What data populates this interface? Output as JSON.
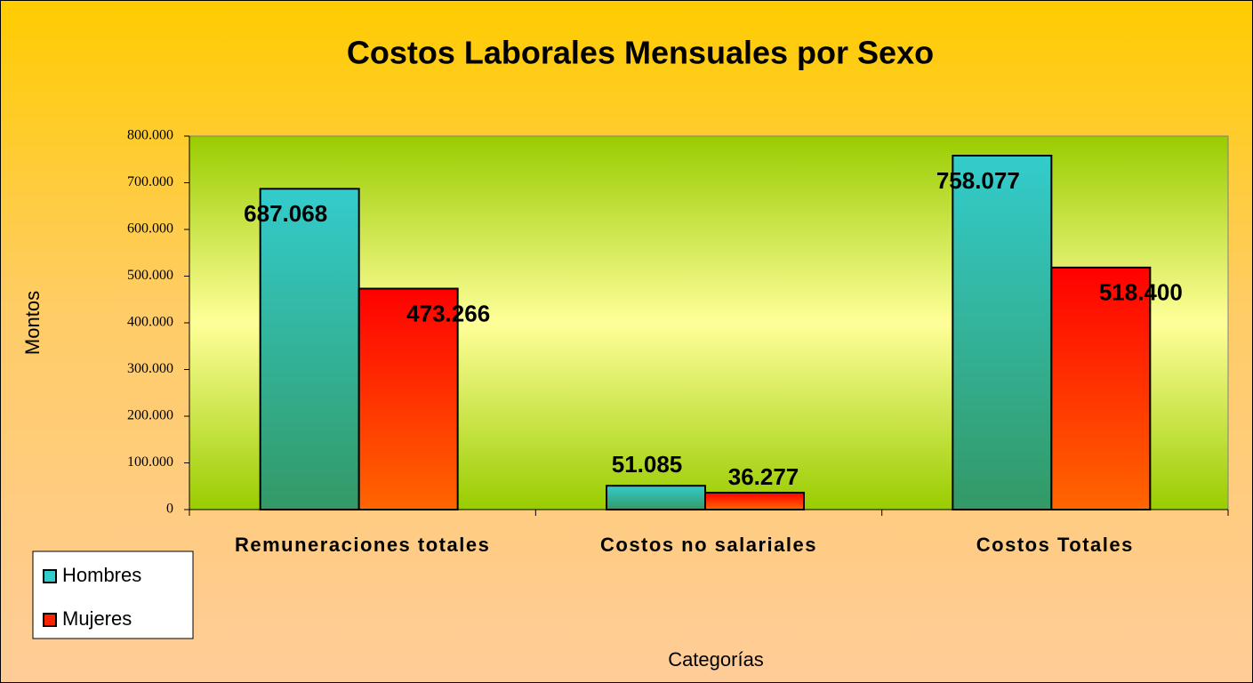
{
  "chart_data": {
    "type": "bar",
    "title": "Costos Laborales Mensuales por Sexo",
    "categories": [
      "Remuneraciones totales",
      "Costos no salariales",
      "Costos Totales"
    ],
    "series": [
      {
        "name": "Hombres",
        "color": "#33cccc",
        "values": [
          687068,
          51085,
          758077
        ],
        "value_labels": [
          "687.068",
          "51.085",
          "758.077"
        ]
      },
      {
        "name": "Mujeres",
        "color": "#ff2200",
        "values": [
          473266,
          36277,
          518400
        ],
        "value_labels": [
          "473.266",
          "36.277",
          "518.400"
        ]
      }
    ],
    "ylabel": "Montos",
    "xlabel": "Categorías",
    "ylim": [
      0,
      800000
    ],
    "yticks": [
      0,
      {
        "value": 100000,
        "label": "100.000"
      },
      {
        "value": 200000,
        "label": "200.000"
      },
      {
        "value": 300000,
        "label": "300.000"
      },
      {
        "value": 400000,
        "label": "400.000"
      },
      {
        "value": 500000,
        "label": "500.000"
      },
      {
        "value": 600000,
        "label": "600.000"
      },
      {
        "value": 700000,
        "label": "700.000"
      },
      {
        "value": 800000,
        "label": "800.000"
      }
    ],
    "legend": "bottom-left"
  }
}
